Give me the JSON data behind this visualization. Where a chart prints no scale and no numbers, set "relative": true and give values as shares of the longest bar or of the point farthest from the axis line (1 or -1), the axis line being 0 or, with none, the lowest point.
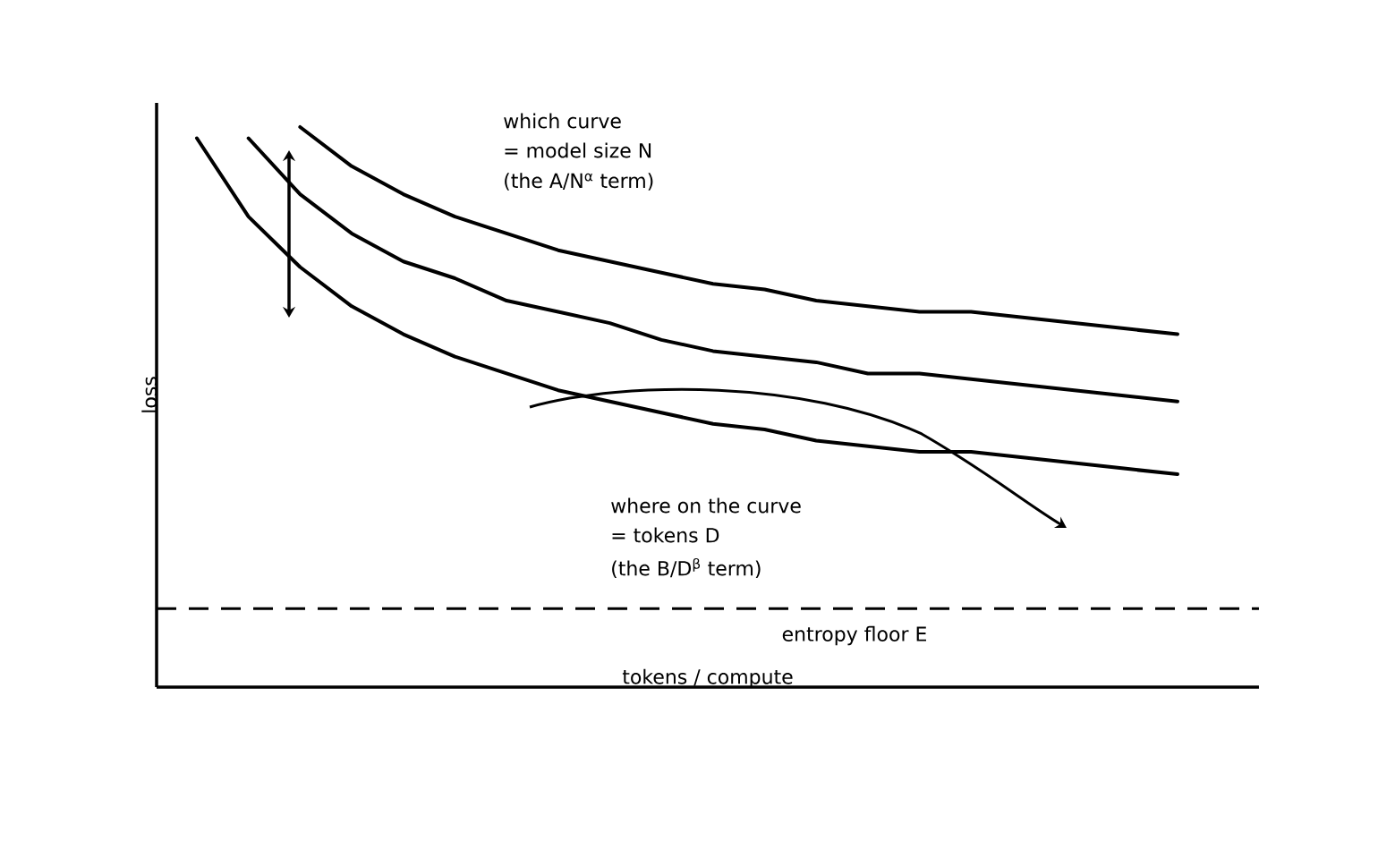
{
  "chart_data": {
    "type": "line",
    "relative": true,
    "xlabel": "tokens / compute",
    "ylabel": "loss",
    "categories": [
      null,
      null,
      null,
      null,
      null,
      null,
      null,
      null,
      null,
      null,
      null,
      null,
      null,
      null,
      null,
      null,
      null,
      null,
      null,
      null
    ],
    "series": [
      {
        "color": "#000000",
        "values": [
          null,
          null,
          1.0,
          0.93,
          0.88,
          0.84,
          0.81,
          0.78,
          0.76,
          0.74,
          0.72,
          0.71,
          0.69,
          0.68,
          0.67,
          0.67,
          0.66,
          0.65,
          0.64,
          0.63
        ]
      },
      {
        "color": "#000000",
        "values": [
          null,
          0.98,
          0.88,
          0.81,
          0.76,
          0.73,
          0.69,
          0.67,
          0.65,
          0.62,
          0.6,
          0.59,
          0.58,
          0.56,
          0.56,
          0.55,
          0.54,
          0.53,
          0.52,
          0.51
        ]
      },
      {
        "color": "#000000",
        "values": [
          0.98,
          0.84,
          0.75,
          0.68,
          0.63,
          0.59,
          0.56,
          0.53,
          0.51,
          0.49,
          0.47,
          0.46,
          0.44,
          0.43,
          0.42,
          0.42,
          0.41,
          0.4,
          0.39,
          0.38
        ]
      }
    ],
    "ref_lines": [
      {
        "axis": "y",
        "value": 0.14,
        "label": "entropy floor E",
        "color": "#000000",
        "line_style": "dashed"
      }
    ],
    "annotations": [
      "which curve",
      "= model size N",
      "(the A/N$^{α}$ term)",
      "where on the curve",
      "= tokens D",
      "(the B/D$^{β}$ term)"
    ],
    "marker": "none",
    "line_style": "solid"
  }
}
